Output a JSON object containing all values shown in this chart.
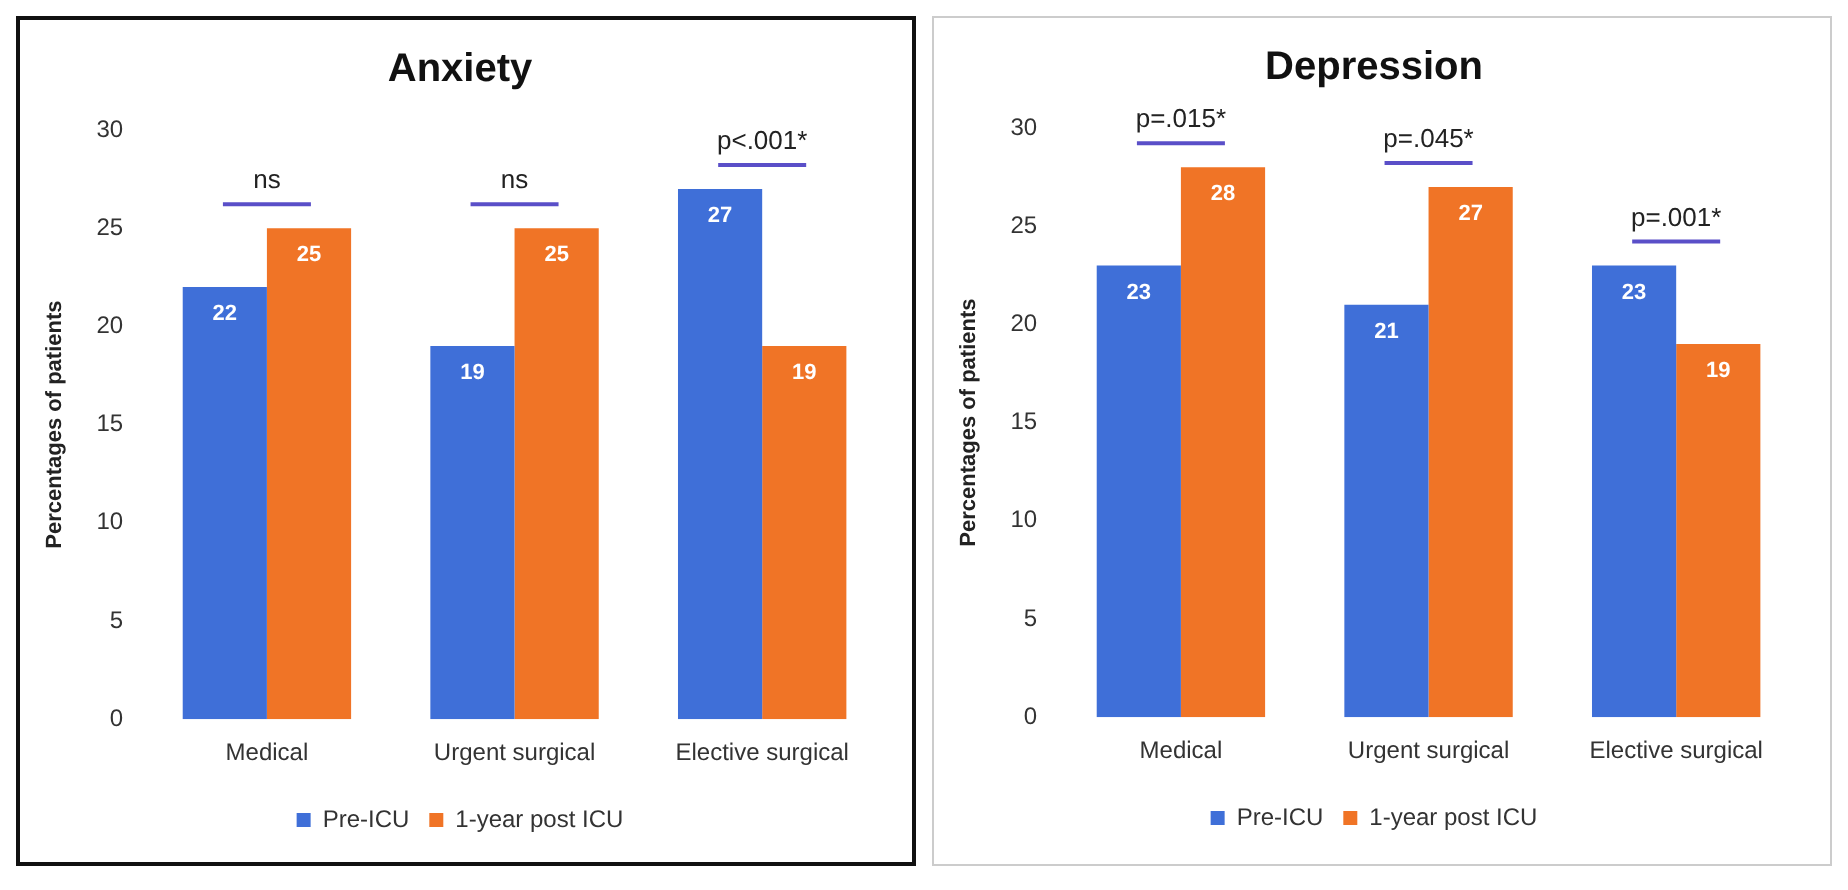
{
  "chart_data": [
    {
      "type": "bar",
      "title": "Anxiety",
      "ylabel": "Percentages of patients",
      "categories": [
        "Medical",
        "Urgent surgical",
        "Elective surgical"
      ],
      "series": [
        {
          "name": "Pre-ICU",
          "color": "#3f6fd8",
          "values": [
            22,
            19,
            27
          ]
        },
        {
          "name": "1-year post ICU",
          "color": "#f07426",
          "values": [
            25,
            25,
            19
          ]
        }
      ],
      "ylim": [
        0,
        30
      ],
      "yticks": [
        0,
        5,
        10,
        15,
        20,
        25,
        30
      ],
      "grid": false,
      "legend": "bottom",
      "data_labels": true,
      "annotations": [
        "ns",
        "ns",
        "p<.001*"
      ]
    },
    {
      "type": "bar",
      "title": "Depression",
      "ylabel": "Percentages of patients",
      "categories": [
        "Medical",
        "Urgent surgical",
        "Elective surgical"
      ],
      "series": [
        {
          "name": "Pre-ICU",
          "color": "#3f6fd8",
          "values": [
            23,
            21,
            23
          ]
        },
        {
          "name": "1-year post ICU",
          "color": "#f07426",
          "values": [
            28,
            27,
            19
          ]
        }
      ],
      "ylim": [
        0,
        30
      ],
      "yticks": [
        0,
        5,
        10,
        15,
        20,
        25,
        30
      ],
      "grid": false,
      "legend": "bottom",
      "data_labels": true,
      "annotations": [
        "p=.015*",
        "p=.045*",
        "p=.001*"
      ]
    }
  ]
}
